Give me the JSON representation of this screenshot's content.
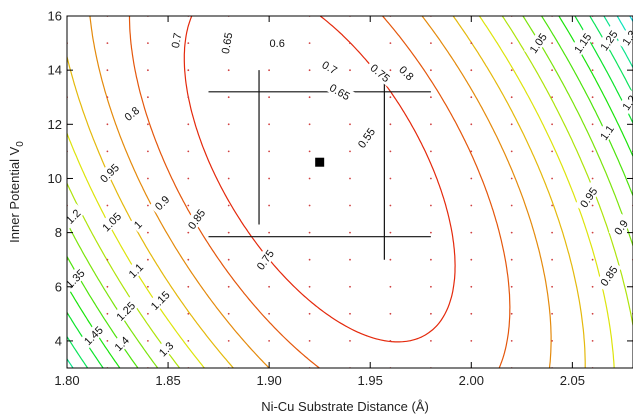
{
  "chart_data": {
    "type": "contour",
    "xlabel": "Ni-Cu Substrate Distance (Å)",
    "ylabel_main": "Inner Potential V",
    "ylabel_sub": "0",
    "xlim": [
      1.8,
      2.08
    ],
    "ylim": [
      3,
      16
    ],
    "x_ticks": [
      1.8,
      1.85,
      1.9,
      1.95,
      2.0,
      2.05
    ],
    "x_tick_labels": [
      "1.80",
      "1.85",
      "1.90",
      "1.95",
      "2.00",
      "2.05"
    ],
    "y_ticks": [
      4,
      6,
      8,
      10,
      12,
      14,
      16
    ],
    "y_tick_labels": [
      "4",
      "6",
      "8",
      "10",
      "12",
      "14",
      "16"
    ],
    "grid": false,
    "minimum": {
      "x": 1.925,
      "y": 10.6
    },
    "error_bars": {
      "x_range": [
        1.895,
        1.957
      ],
      "y_range": [
        8.0,
        13.2
      ],
      "horizontal_lines": [
        {
          "y": 13.2,
          "x0": 1.87,
          "x1": 1.98
        },
        {
          "y": 7.85,
          "x0": 1.87,
          "x1": 1.98
        }
      ],
      "vertical_lines": [
        {
          "x": 1.895,
          "y0": 8.3,
          "y1": 14.0
        },
        {
          "x": 1.957,
          "y0": 7.0,
          "y1": 13.9
        }
      ]
    },
    "contour_levels": [
      "0.55",
      "0.6",
      "0.65",
      "0.7",
      "0.75",
      "0.8",
      "0.85",
      "0.9",
      "0.95",
      "1",
      "1.05",
      "1.1",
      "1.15",
      "1.2",
      "1.25",
      "1.3",
      "1.35",
      "1.4",
      "1.45"
    ],
    "contour_labels": [
      {
        "text": "0.55",
        "x": 1.948,
        "y": 11.5,
        "angle": -55
      },
      {
        "text": "0.6",
        "x": 1.904,
        "y": 15.0,
        "angle": 0
      },
      {
        "text": "0.65",
        "x": 1.879,
        "y": 15.0,
        "angle": -80
      },
      {
        "text": "0.65",
        "x": 1.935,
        "y": 13.2,
        "angle": 30
      },
      {
        "text": "0.7",
        "x": 1.854,
        "y": 15.1,
        "angle": -80
      },
      {
        "text": "0.7",
        "x": 1.93,
        "y": 14.1,
        "angle": 30
      },
      {
        "text": "0.75",
        "x": 1.955,
        "y": 13.9,
        "angle": 40
      },
      {
        "text": "0.75",
        "x": 1.898,
        "y": 7.0,
        "angle": -55
      },
      {
        "text": "0.8",
        "x": 1.832,
        "y": 12.4,
        "angle": -40
      },
      {
        "text": "0.8",
        "x": 1.968,
        "y": 13.9,
        "angle": 45
      },
      {
        "text": "0.85",
        "x": 1.864,
        "y": 8.5,
        "angle": -55
      },
      {
        "text": "0.85",
        "x": 2.068,
        "y": 6.4,
        "angle": -55
      },
      {
        "text": "0.9",
        "x": 1.847,
        "y": 9.1,
        "angle": -45
      },
      {
        "text": "0.9",
        "x": 2.074,
        "y": 8.2,
        "angle": -55
      },
      {
        "text": "0.95",
        "x": 1.821,
        "y": 10.2,
        "angle": -45
      },
      {
        "text": "0.95",
        "x": 2.058,
        "y": 9.3,
        "angle": -55
      },
      {
        "text": "1",
        "x": 1.835,
        "y": 8.3,
        "angle": -45
      },
      {
        "text": "1.05",
        "x": 1.822,
        "y": 8.4,
        "angle": -45
      },
      {
        "text": "1.05",
        "x": 2.033,
        "y": 15.0,
        "angle": -55
      },
      {
        "text": "1.1",
        "x": 1.834,
        "y": 6.6,
        "angle": -45
      },
      {
        "text": "1.1",
        "x": 2.067,
        "y": 11.7,
        "angle": -55
      },
      {
        "text": "1.15",
        "x": 1.846,
        "y": 5.5,
        "angle": -45
      },
      {
        "text": "1.15",
        "x": 2.055,
        "y": 15.0,
        "angle": -55
      },
      {
        "text": "1.2",
        "x": 1.803,
        "y": 8.6,
        "angle": -45
      },
      {
        "text": "1.2",
        "x": 2.078,
        "y": 12.8,
        "angle": -55
      },
      {
        "text": "1.25",
        "x": 1.829,
        "y": 5.1,
        "angle": -45
      },
      {
        "text": "1.25",
        "x": 2.068,
        "y": 15.1,
        "angle": -55
      },
      {
        "text": "1.3",
        "x": 1.849,
        "y": 3.7,
        "angle": -45
      },
      {
        "text": "1.3",
        "x": 2.078,
        "y": 15.2,
        "angle": -55
      },
      {
        "text": "1.35",
        "x": 1.804,
        "y": 6.3,
        "angle": -45
      },
      {
        "text": "1.4",
        "x": 1.827,
        "y": 3.9,
        "angle": -45
      },
      {
        "text": "1.45",
        "x": 1.813,
        "y": 4.2,
        "angle": -45
      }
    ]
  }
}
